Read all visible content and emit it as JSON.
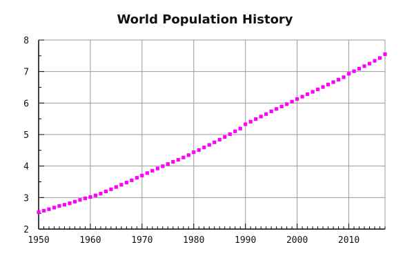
{
  "chart_data": {
    "type": "scatter",
    "title": "World Population History",
    "xlabel": "",
    "ylabel": "",
    "xlim": [
      1950,
      2017
    ],
    "ylim": [
      2,
      8
    ],
    "x_ticks": [
      "1950",
      "1960",
      "1970",
      "1980",
      "1990",
      "2000",
      "2010"
    ],
    "y_ticks": [
      "2",
      "3",
      "4",
      "5",
      "6",
      "7",
      "8"
    ],
    "grid": true,
    "marker_color": "#ff00ff",
    "series": [
      {
        "x": [
          1950,
          1951,
          1952,
          1953,
          1954,
          1955,
          1956,
          1957,
          1958,
          1959,
          1960,
          1961,
          1962,
          1963,
          1964,
          1965,
          1966,
          1967,
          1968,
          1969,
          1970,
          1971,
          1972,
          1973,
          1974,
          1975,
          1976,
          1977,
          1978,
          1979,
          1980,
          1981,
          1982,
          1983,
          1984,
          1985,
          1986,
          1987,
          1988,
          1989,
          1990,
          1991,
          1992,
          1993,
          1994,
          1995,
          1996,
          1997,
          1998,
          1999,
          2000,
          2001,
          2002,
          2003,
          2004,
          2005,
          2006,
          2007,
          2008,
          2009,
          2010,
          2011,
          2012,
          2013,
          2014,
          2015,
          2016,
          2017
        ],
        "values": [
          2.536,
          2.584,
          2.631,
          2.682,
          2.734,
          2.773,
          2.818,
          2.87,
          2.925,
          2.975,
          3.018,
          3.068,
          3.126,
          3.196,
          3.264,
          3.335,
          3.406,
          3.476,
          3.549,
          3.627,
          3.7,
          3.777,
          3.851,
          3.924,
          3.995,
          4.064,
          4.134,
          4.199,
          4.272,
          4.347,
          4.439,
          4.509,
          4.591,
          4.672,
          4.754,
          4.838,
          4.925,
          5.014,
          5.102,
          5.191,
          5.327,
          5.41,
          5.491,
          5.571,
          5.651,
          5.735,
          5.813,
          5.891,
          5.966,
          6.042,
          6.126,
          6.203,
          6.28,
          6.356,
          6.433,
          6.51,
          6.587,
          6.664,
          6.742,
          6.82,
          6.93,
          7.01,
          7.09,
          7.17,
          7.25,
          7.34,
          7.43,
          7.55
        ]
      }
    ]
  }
}
